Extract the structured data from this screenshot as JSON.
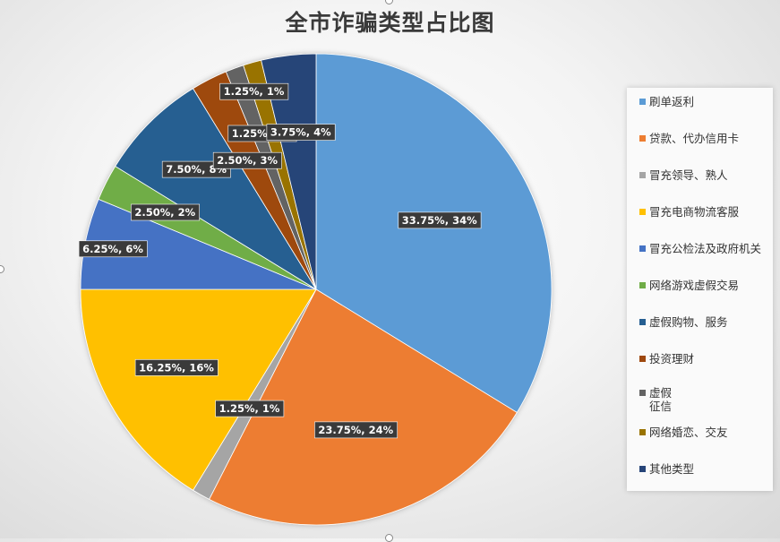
{
  "chart_data": {
    "type": "pie",
    "title": "全市诈骗类型占比图",
    "legend_position": "right",
    "slices": [
      {
        "name": "刷单返利",
        "value": 33.75,
        "label": "33.75%, 34%",
        "color": "#5b9bd5"
      },
      {
        "name": "贷款、代办信用卡",
        "value": 23.75,
        "label": "23.75%, 24%",
        "color": "#ed7d31"
      },
      {
        "name": "冒充领导、熟人",
        "value": 1.25,
        "label": "1.25%, 1%",
        "color": "#a5a5a5"
      },
      {
        "name": "冒充电商物流客服",
        "value": 16.25,
        "label": "16.25%, 16%",
        "color": "#ffc000"
      },
      {
        "name": "冒充公检法及政府机关",
        "value": 6.25,
        "label": "6.25%, 6%",
        "color": "#4472c4"
      },
      {
        "name": "网络游戏虚假交易",
        "value": 2.5,
        "label": "2.50%, 2%",
        "color": "#70ad47"
      },
      {
        "name": "虚假购物、服务",
        "value": 7.5,
        "label": "7.50%, 8%",
        "color": "#255e91"
      },
      {
        "name": "投资理财",
        "value": 2.5,
        "label": "2.50%, 3%",
        "color": "#9e480e"
      },
      {
        "name": "虚假\n征信",
        "value": 1.25,
        "label": "1.25%, 1%",
        "color": "#636363"
      },
      {
        "name": "网络婚恋、交友",
        "value": 1.25,
        "label": "1.25%, 1%",
        "color": "#997300"
      },
      {
        "name": "其他类型",
        "value": 3.75,
        "label": "3.75%, 4%",
        "color": "#264478"
      }
    ]
  }
}
